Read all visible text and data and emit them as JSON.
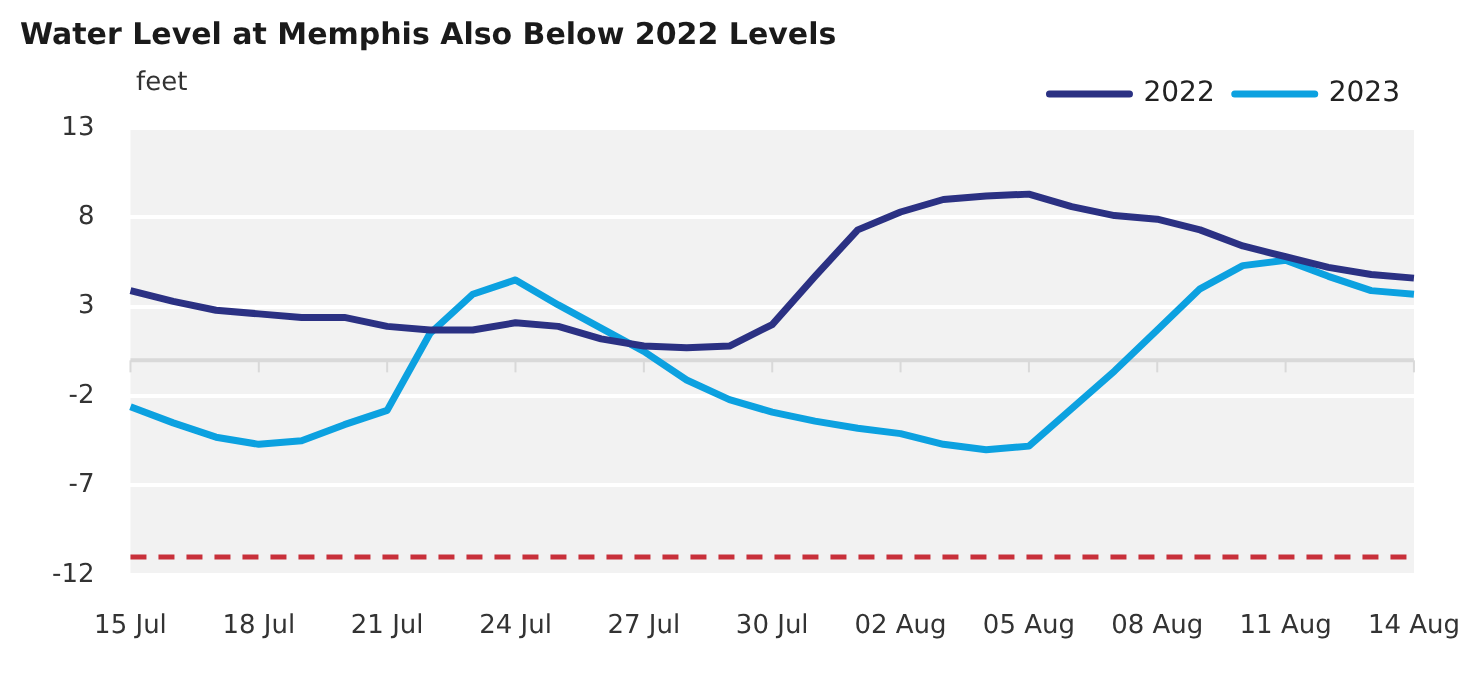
{
  "chart_data": {
    "type": "line",
    "title": "Water Level at Memphis Also Below 2022 Levels",
    "ylabel": "feet",
    "categories": [
      "15 Jul",
      null,
      null,
      "18 Jul",
      null,
      null,
      "21 Jul",
      null,
      null,
      "24 Jul",
      null,
      null,
      "27 Jul",
      null,
      null,
      "30 Jul",
      null,
      null,
      "02 Aug",
      null,
      null,
      "05 Aug",
      null,
      null,
      "08 Aug",
      null,
      null,
      "11 Aug",
      null,
      null,
      "14 Aug"
    ],
    "series": [
      {
        "name": "2022",
        "color": "#2b3183",
        "values": [
          3.9,
          3.3,
          2.8,
          2.6,
          2.4,
          2.4,
          1.9,
          1.7,
          1.7,
          2.1,
          1.9,
          1.2,
          0.8,
          0.7,
          0.8,
          2.0,
          4.7,
          7.3,
          8.3,
          9.0,
          9.2,
          9.3,
          8.6,
          8.1,
          7.9,
          7.3,
          6.4,
          5.8,
          5.2,
          4.8,
          4.6
        ]
      },
      {
        "name": "2023",
        "color": "#0ca1e0",
        "values": [
          -2.6,
          -3.5,
          -4.3,
          -4.7,
          -4.5,
          -3.6,
          -2.8,
          1.5,
          3.7,
          4.5,
          3.1,
          1.8,
          0.5,
          -1.1,
          -2.2,
          -2.9,
          -3.4,
          -3.8,
          -4.1,
          -4.7,
          -5.0,
          -4.8,
          -2.7,
          -0.6,
          1.7,
          4.0,
          5.3,
          5.6,
          4.7,
          3.9,
          3.7
        ]
      }
    ],
    "ylim": [
      -12,
      13
    ],
    "yticks": [
      13,
      8,
      3,
      -2,
      -7,
      -12
    ],
    "grid": "y",
    "legend": "top right",
    "marker": "none",
    "line_style": "solid",
    "ref_lines": [
      {
        "axis": "y",
        "value": -11,
        "color": "#c8303a",
        "line_style": "dashed"
      }
    ]
  }
}
